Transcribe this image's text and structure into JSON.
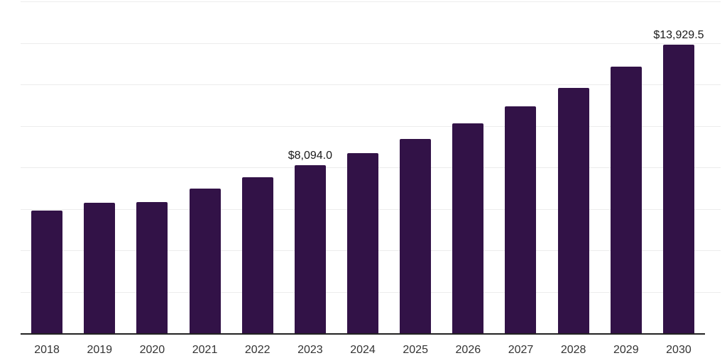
{
  "chart_data": {
    "type": "bar",
    "categories": [
      "2018",
      "2019",
      "2020",
      "2021",
      "2022",
      "2023",
      "2024",
      "2025",
      "2026",
      "2027",
      "2028",
      "2029",
      "2030"
    ],
    "values": [
      5910,
      6275,
      6335,
      6990,
      7525,
      8094.0,
      8695,
      9380,
      10120,
      10935,
      11820,
      12845,
      13929.5
    ],
    "point_labels": [
      "",
      "",
      "",
      "",
      "",
      "$8,094.0",
      "",
      "",
      "",
      "",
      "",
      "",
      "$13,929.5"
    ],
    "title": "",
    "xlabel": "",
    "ylabel": "",
    "ylim": [
      0,
      16000
    ],
    "gridline_interval": 2000,
    "grid": "horizontal-only",
    "legend": "none",
    "y_tick_labels_visible": false,
    "colors": {
      "bar": "#321247",
      "axis": "#222222",
      "gridline": "#ececec",
      "category_label": "#333333",
      "value_label": "#1a1a1a",
      "background": "#ffffff"
    }
  }
}
